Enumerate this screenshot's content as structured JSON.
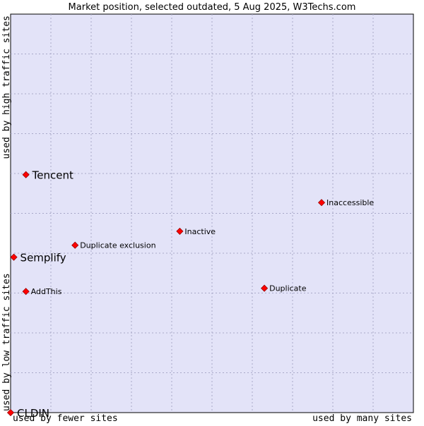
{
  "chart_data": {
    "type": "scatter",
    "title": "Market position, selected outdated, 5 Aug 2025, W3Techs.com",
    "xlabel_left": "used by fewer sites",
    "xlabel_right": "used by many sites",
    "ylabel_bottom": "used by low traffic sites",
    "ylabel_top": "used by high traffic sites",
    "xlim": [
      0,
      10
    ],
    "ylim": [
      0,
      10
    ],
    "grid": true,
    "points": [
      {
        "label": "Tencent",
        "x": 0.38,
        "y": 5.97,
        "emphasis": true
      },
      {
        "label": "Semplify",
        "x": 0.08,
        "y": 3.9,
        "emphasis": true
      },
      {
        "label": "CLDIN",
        "x": 0.0,
        "y": 0.0,
        "emphasis": true
      },
      {
        "label": "Inaccessible",
        "x": 7.72,
        "y": 5.27,
        "emphasis": false
      },
      {
        "label": "Inactive",
        "x": 4.2,
        "y": 4.55,
        "emphasis": false
      },
      {
        "label": "Duplicate exclusion",
        "x": 1.6,
        "y": 4.2,
        "emphasis": false
      },
      {
        "label": "AddThis",
        "x": 0.38,
        "y": 3.04,
        "emphasis": false
      },
      {
        "label": "Duplicate",
        "x": 6.3,
        "y": 3.12,
        "emphasis": false
      }
    ]
  },
  "colors": {
    "plot_bg": "#e3e3f8",
    "grid": "#a8a8c8",
    "border": "#000000",
    "marker": "#ff0000",
    "marker_edge": "#990000",
    "text": "#000000"
  }
}
